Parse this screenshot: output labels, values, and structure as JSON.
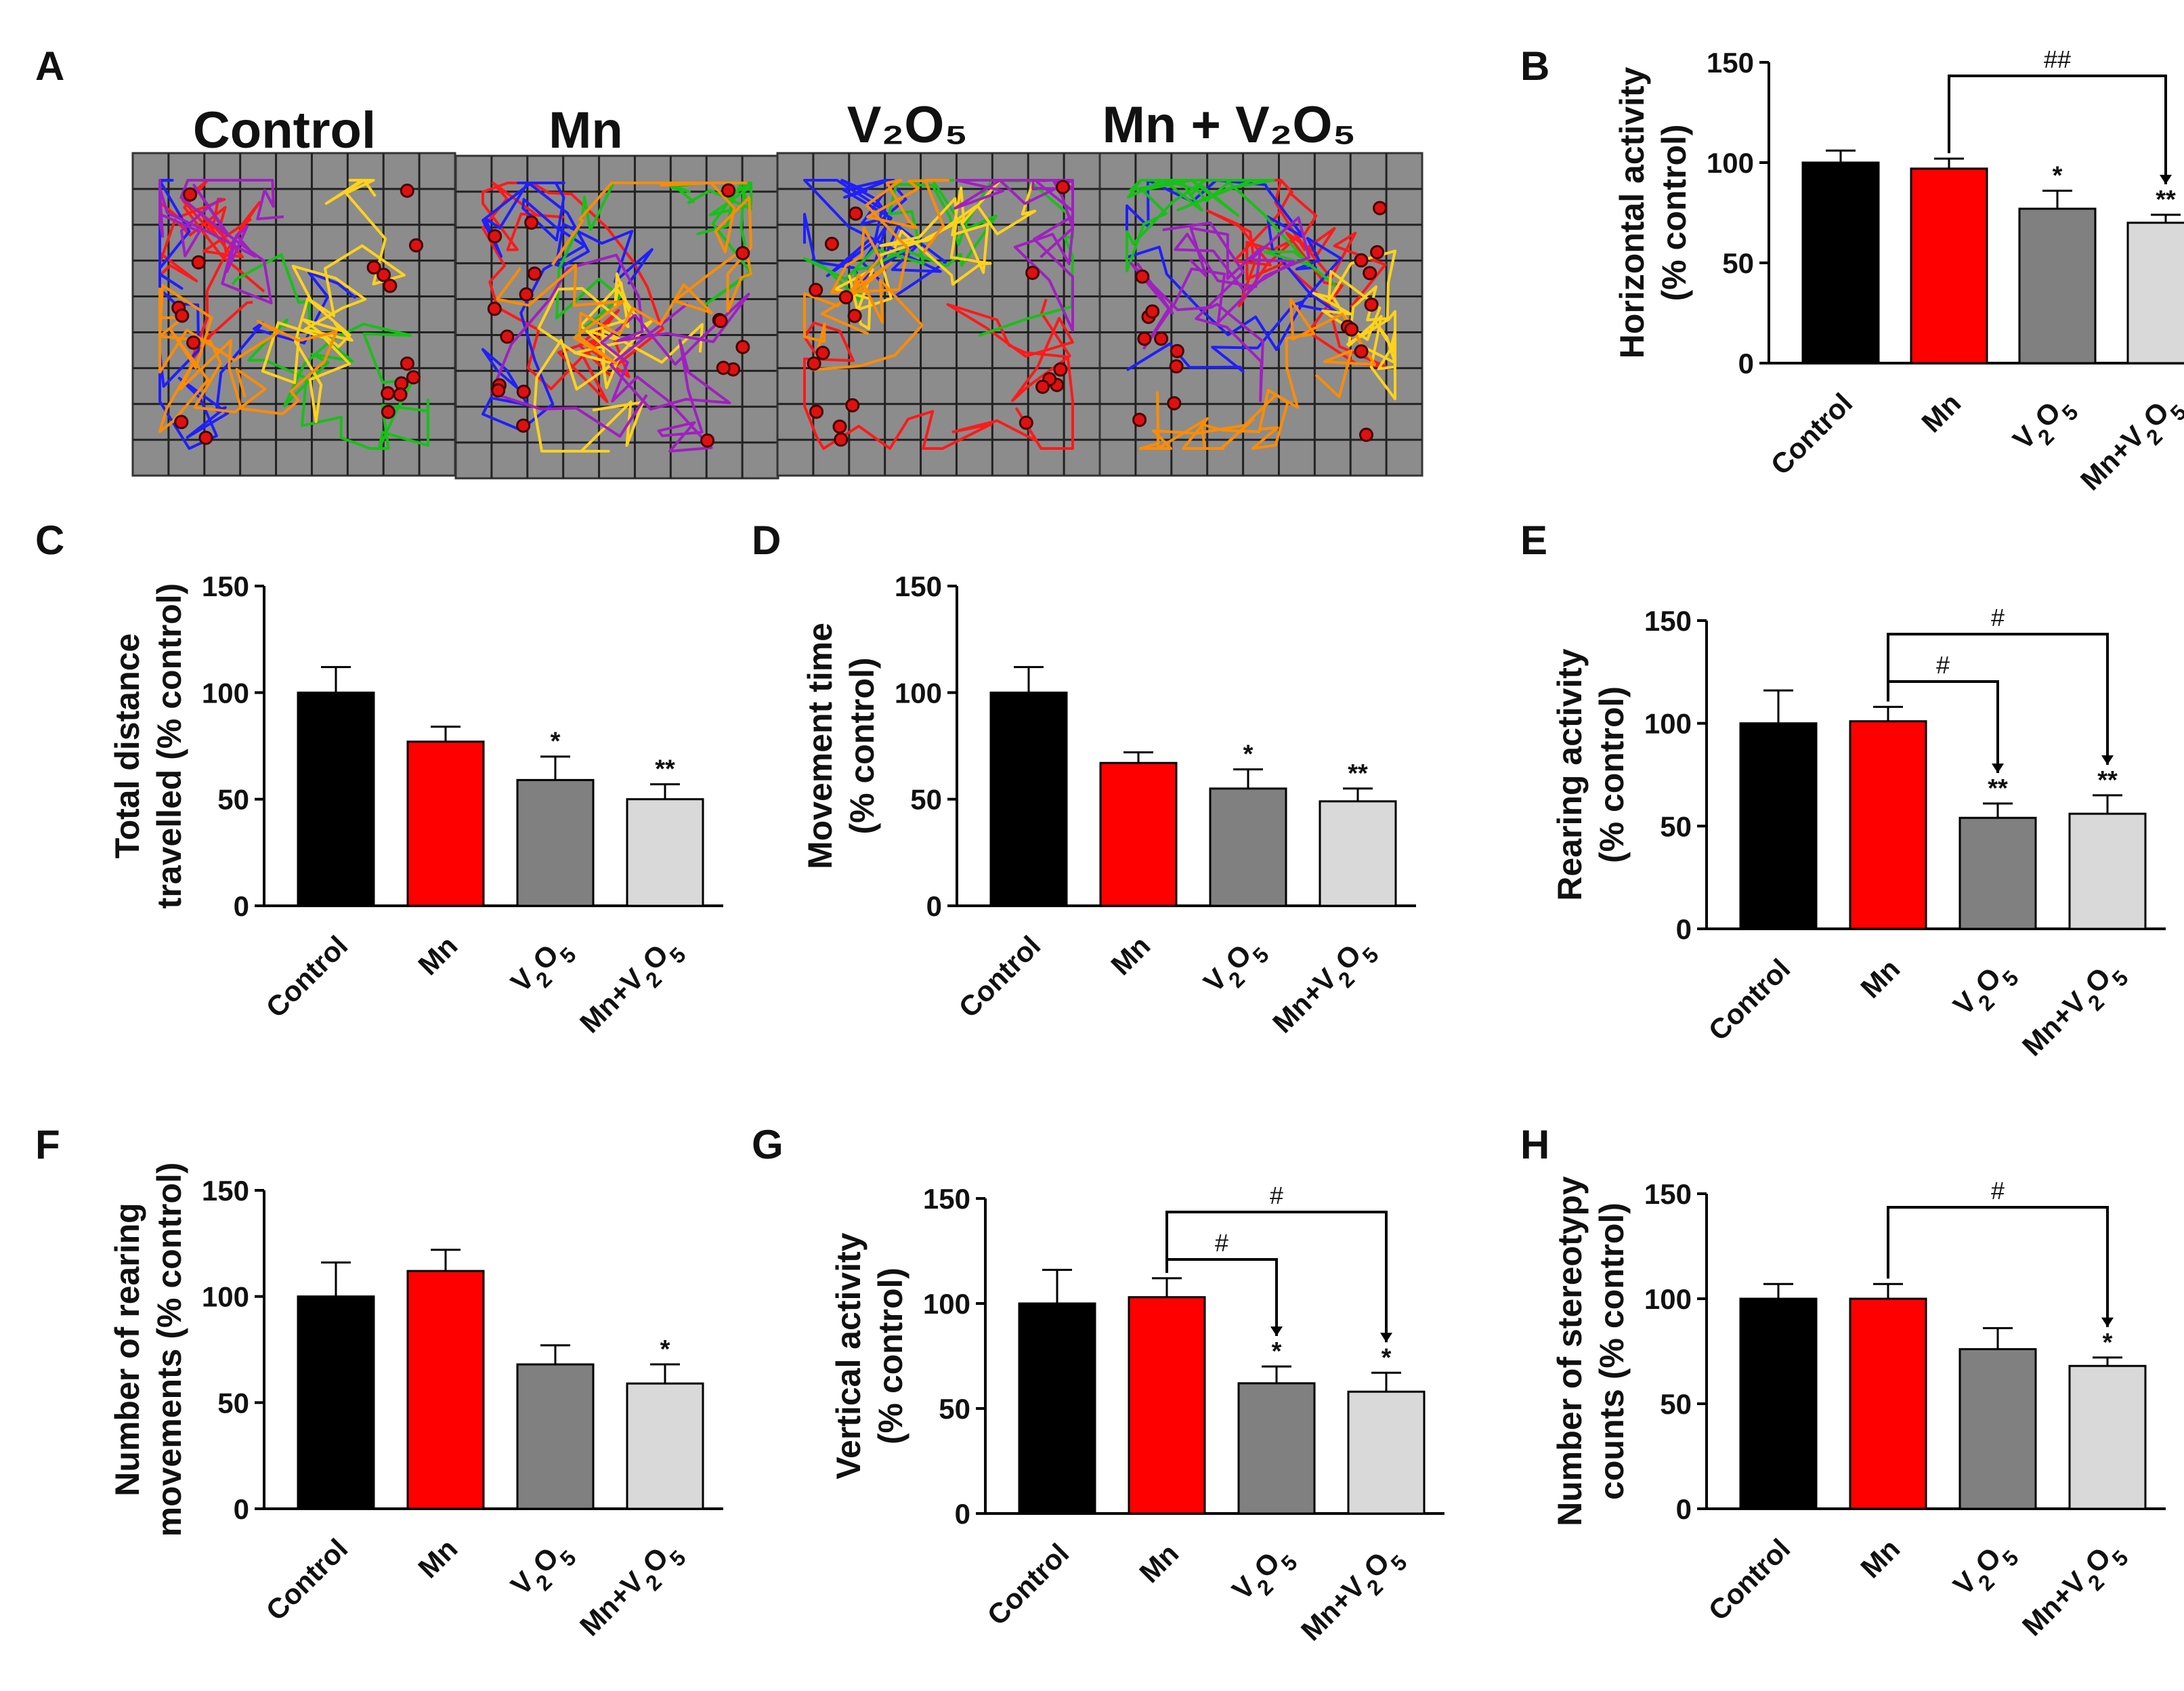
{
  "panel_a": {
    "label": "A",
    "titles": [
      "Control",
      "Mn",
      "V₂O₅",
      "Mn + V₂O₅"
    ]
  },
  "chart_data": [
    {
      "panel": "B",
      "type": "bar",
      "ylabel": [
        "Horizontal activity",
        "(% control)"
      ],
      "categories": [
        "Control",
        "Mn",
        "V₂O₅",
        "Mn+V₂O₅"
      ],
      "values": [
        100,
        97,
        77,
        70
      ],
      "errors": [
        6,
        5,
        9,
        4
      ],
      "significance": [
        "",
        "",
        "*",
        "**"
      ],
      "brackets": [
        {
          "from": 1,
          "to": 3,
          "label": "##"
        }
      ],
      "ylim": [
        0,
        150
      ],
      "yticks": [
        0,
        50,
        100,
        150
      ],
      "colors": [
        "#000000",
        "#ff0000",
        "#808080",
        "#d9d9d9"
      ]
    },
    {
      "panel": "C",
      "type": "bar",
      "ylabel": [
        "Total distance",
        "travelled (% control)"
      ],
      "categories": [
        "Control",
        "Mn",
        "V₂O₅",
        "Mn+V₂O₅"
      ],
      "values": [
        100,
        77,
        59,
        50
      ],
      "errors": [
        12,
        7,
        11,
        7
      ],
      "significance": [
        "",
        "",
        "*",
        "**"
      ],
      "brackets": [],
      "ylim": [
        0,
        150
      ],
      "yticks": [
        0,
        50,
        100,
        150
      ],
      "colors": [
        "#000000",
        "#ff0000",
        "#808080",
        "#d9d9d9"
      ]
    },
    {
      "panel": "D",
      "type": "bar",
      "ylabel": [
        "Movement time",
        "(% control)"
      ],
      "categories": [
        "Control",
        "Mn",
        "V₂O₅",
        "Mn+V₂O₅"
      ],
      "values": [
        100,
        67,
        55,
        49
      ],
      "errors": [
        12,
        5,
        9,
        6
      ],
      "significance": [
        "",
        "",
        "*",
        "**"
      ],
      "brackets": [],
      "ylim": [
        0,
        150
      ],
      "yticks": [
        0,
        50,
        100,
        150
      ],
      "colors": [
        "#000000",
        "#ff0000",
        "#808080",
        "#d9d9d9"
      ]
    },
    {
      "panel": "E",
      "type": "bar",
      "ylabel": [
        "Rearing activity",
        "(% control)"
      ],
      "categories": [
        "Control",
        "Mn",
        "V₂O₅",
        "Mn+V₂O₅"
      ],
      "values": [
        100,
        101,
        54,
        56
      ],
      "errors": [
        16,
        7,
        7,
        9
      ],
      "significance": [
        "",
        "",
        "**",
        "**"
      ],
      "brackets": [
        {
          "from": 1,
          "to": 2,
          "label": "#"
        },
        {
          "from": 1,
          "to": 3,
          "label": "#"
        }
      ],
      "ylim": [
        0,
        150
      ],
      "yticks": [
        0,
        50,
        100,
        150
      ],
      "colors": [
        "#000000",
        "#ff0000",
        "#808080",
        "#d9d9d9"
      ]
    },
    {
      "panel": "F",
      "type": "bar",
      "ylabel": [
        "Number of rearing",
        "movements (% control)"
      ],
      "categories": [
        "Control",
        "Mn",
        "V₂O₅",
        "Mn+V₂O₅"
      ],
      "values": [
        100,
        112,
        68,
        59
      ],
      "errors": [
        16,
        10,
        9,
        9
      ],
      "significance": [
        "",
        "",
        "",
        "*"
      ],
      "brackets": [],
      "ylim": [
        0,
        150
      ],
      "yticks": [
        0,
        50,
        100,
        150
      ],
      "colors": [
        "#000000",
        "#ff0000",
        "#808080",
        "#d9d9d9"
      ]
    },
    {
      "panel": "G",
      "type": "bar",
      "ylabel": [
        "Vertical activity",
        "(% control)"
      ],
      "categories": [
        "Control",
        "Mn",
        "V₂O₅",
        "Mn+V₂O₅"
      ],
      "values": [
        100,
        103,
        62,
        58
      ],
      "errors": [
        16,
        9,
        8,
        9
      ],
      "significance": [
        "",
        "",
        "*",
        "*"
      ],
      "brackets": [
        {
          "from": 1,
          "to": 2,
          "label": "#"
        },
        {
          "from": 1,
          "to": 3,
          "label": "#"
        }
      ],
      "ylim": [
        0,
        150
      ],
      "yticks": [
        0,
        50,
        100,
        150
      ],
      "colors": [
        "#000000",
        "#ff0000",
        "#808080",
        "#d9d9d9"
      ]
    },
    {
      "panel": "H",
      "type": "bar",
      "ylabel": [
        "Number of stereotypy",
        "counts (% control)"
      ],
      "categories": [
        "Control",
        "Mn",
        "V₂O₅",
        "Mn+V₂O₅"
      ],
      "values": [
        100,
        100,
        76,
        68
      ],
      "errors": [
        7,
        7,
        10,
        4
      ],
      "significance": [
        "",
        "",
        "",
        "*"
      ],
      "brackets": [
        {
          "from": 1,
          "to": 3,
          "label": "#"
        }
      ],
      "ylim": [
        0,
        150
      ],
      "yticks": [
        0,
        50,
        100,
        150
      ],
      "colors": [
        "#000000",
        "#ff0000",
        "#808080",
        "#d9d9d9"
      ]
    }
  ]
}
